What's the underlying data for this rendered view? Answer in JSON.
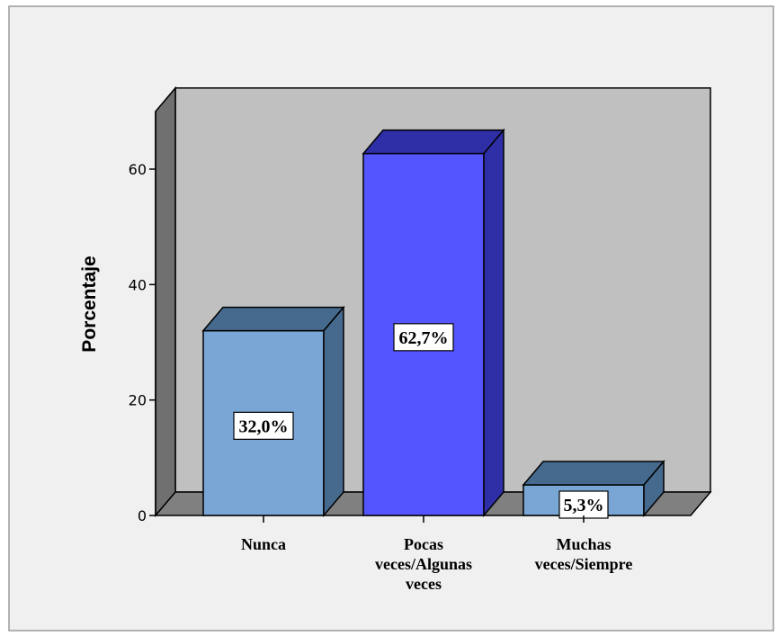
{
  "chart_data": {
    "type": "bar",
    "title": "",
    "xlabel": "",
    "ylabel": "Porcentaje",
    "ylim": [
      0,
      70
    ],
    "yticks": [
      0,
      20,
      40,
      60
    ],
    "grid": false,
    "three_d": true,
    "categories": [
      [
        "Nunca"
      ],
      [
        "Pocas",
        "veces/Algunas",
        "veces"
      ],
      [
        "Muchas",
        "veces/Siempre"
      ]
    ],
    "values": [
      32.0,
      62.7,
      5.3
    ],
    "data_labels": [
      "32,0%",
      "62,7%",
      "5,3%"
    ],
    "colors": {
      "bars": [
        "#7aa6d6",
        "#5555ff",
        "#7aa6d6"
      ],
      "backwall": "#c0c0c0",
      "floor": "#808080",
      "sidewall": "#707070"
    }
  }
}
